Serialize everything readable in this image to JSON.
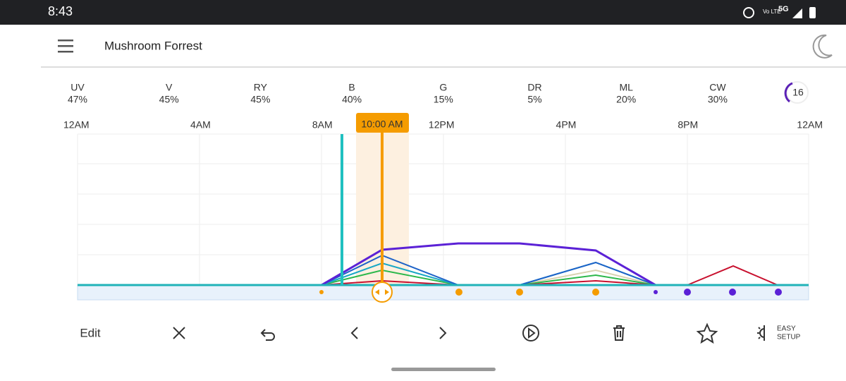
{
  "status_bar": {
    "time": "8:43",
    "network": "5G",
    "volte": "Vo LTE"
  },
  "header": {
    "title": "Mushroom Forrest"
  },
  "channels": [
    {
      "name": "UV",
      "level": "47%"
    },
    {
      "name": "V",
      "level": "45%"
    },
    {
      "name": "RY",
      "level": "45%"
    },
    {
      "name": "B",
      "level": "40%"
    },
    {
      "name": "G",
      "level": "15%"
    },
    {
      "name": "DR",
      "level": "5%"
    },
    {
      "name": "ML",
      "level": "20%"
    },
    {
      "name": "CW",
      "level": "30%"
    }
  ],
  "badge": "16",
  "timeline": {
    "labels": [
      "12AM",
      "4AM",
      "8AM",
      "12PM",
      "4PM",
      "8PM",
      "12AM"
    ],
    "selected_time": "10:00 AM"
  },
  "toolbar": {
    "edit": "Edit",
    "easy_setup": [
      "EASY",
      "SETUP"
    ]
  }
}
